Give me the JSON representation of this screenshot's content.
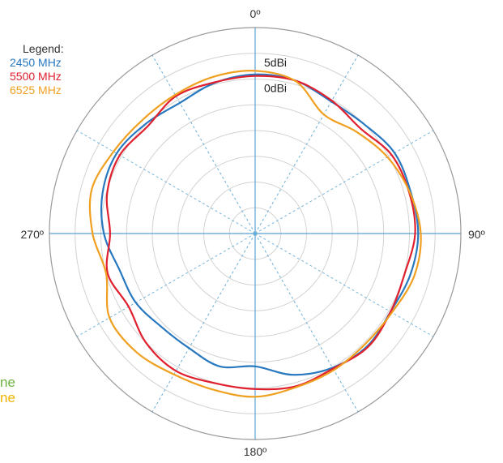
{
  "legend": {
    "title": "Legend:",
    "items": [
      {
        "label": "2450 MHz",
        "color": "#2878c0"
      },
      {
        "label": "5500 MHz",
        "color": "#e0202e"
      },
      {
        "label": "6525 MHz",
        "color": "#f0a020"
      }
    ]
  },
  "cut_labels": [
    {
      "text": "ne",
      "color": "#6db33f"
    },
    {
      "text": "ne",
      "color": "#f0b400"
    }
  ],
  "chart_data": {
    "type": "polar-line",
    "title": "",
    "angle_labels": [
      "0º",
      "90º",
      "180º",
      "270º"
    ],
    "radial_labels": [
      {
        "value": 5,
        "text": "5dBi"
      },
      {
        "value": 0,
        "text": "0dBi"
      }
    ],
    "r_range": [
      -30,
      10
    ],
    "ring_step_db": 5,
    "spoke_step_deg": 30,
    "angle_direction": "clockwise-from-top",
    "series": [
      {
        "name": "2450 MHz",
        "color": "#2878c0",
        "angles": [
          0,
          15,
          30,
          45,
          60,
          75,
          90,
          105,
          120,
          135,
          150,
          165,
          180,
          195,
          210,
          225,
          240,
          255,
          270,
          285,
          300,
          315,
          330,
          345
        ],
        "values": [
          0.9,
          0.7,
          -0.4,
          0.0,
          1.3,
          1.3,
          1.7,
          1.2,
          0.4,
          0.9,
          0.1,
          -1.6,
          -4.2,
          -3.3,
          -4.3,
          -4.3,
          -3.2,
          -2.7,
          -0.6,
          0.7,
          1.1,
          0.1,
          -0.7,
          0.3
        ]
      },
      {
        "name": "5500 MHz",
        "color": "#e0202e",
        "angles": [
          0,
          15,
          30,
          45,
          60,
          75,
          90,
          105,
          120,
          135,
          150,
          165,
          180,
          195,
          210,
          225,
          240,
          255,
          270,
          285,
          300,
          315,
          330,
          345
        ],
        "values": [
          0.6,
          0.7,
          -0.2,
          -1.1,
          0.6,
          1.0,
          1.1,
          0.1,
          0.4,
          1.1,
          0.3,
          0.7,
          0.2,
          0.1,
          0.8,
          0.0,
          -1.6,
          -0.3,
          -1.8,
          -0.2,
          0.4,
          -0.5,
          0.8,
          0.4
        ]
      },
      {
        "name": "6525 MHz",
        "color": "#f0a020",
        "angles": [
          0,
          15,
          30,
          45,
          60,
          75,
          90,
          105,
          120,
          135,
          150,
          165,
          180,
          195,
          210,
          225,
          240,
          255,
          270,
          285,
          300,
          315,
          330,
          345
        ],
        "values": [
          1.6,
          0.6,
          -3.3,
          -2.1,
          -0.3,
          1.1,
          2.2,
          2.0,
          0.7,
          0.3,
          0.6,
          0.9,
          1.7,
          1.4,
          1.6,
          2.6,
          2.7,
          0.0,
          1.6,
          2.9,
          1.8,
          1.1,
          1.1,
          1.5
        ]
      }
    ]
  }
}
